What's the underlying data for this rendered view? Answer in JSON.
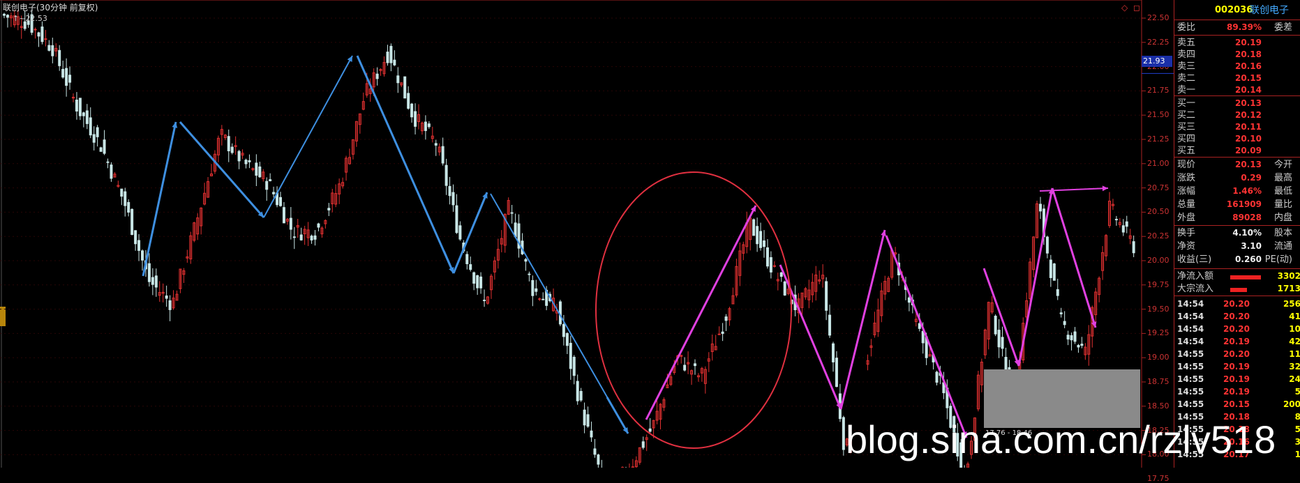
{
  "window": {
    "title": "联创电子(30分钟 前复权)",
    "high_marker": "22.53",
    "corner_icons": "◇ ◻"
  },
  "axis": {
    "min": 17.62,
    "max": 22.62,
    "labels": [
      "22.50",
      "22.25",
      "22.00",
      "21.75",
      "21.50",
      "21.25",
      "21.00",
      "20.75",
      "20.50",
      "20.25",
      "20.00",
      "19.75",
      "19.50",
      "19.25",
      "19.00",
      "18.75",
      "18.50",
      "18.25",
      "18.00",
      "17.75"
    ],
    "current_price_tag": "21.93"
  },
  "colors": {
    "up": "#e03030",
    "down": "#c8e6e6",
    "blue_trend": "#3e8fe0",
    "magenta_trend": "#e040e0",
    "circle": "#e03040",
    "panel_border": "#aa2222"
  },
  "chart_data": {
    "type": "candlestick",
    "title": "联创电子(30分钟 前复权)",
    "ylim": [
      17.62,
      22.62
    ],
    "pivots": [
      22.53,
      22.45,
      22.2,
      21.6,
      21.2,
      20.6,
      19.8,
      19.55,
      20.4,
      21.3,
      21.0,
      20.8,
      20.3,
      20.3,
      20.8,
      21.7,
      22.15,
      21.5,
      21.2,
      20.2,
      19.55,
      20.55,
      19.7,
      19.5,
      18.5,
      17.62,
      17.85,
      18.3,
      19.0,
      18.8,
      19.4,
      20.4,
      19.9,
      19.5,
      19.9,
      18.0,
      19.1,
      20.1,
      19.3,
      18.7,
      17.75,
      19.6,
      18.5,
      20.6,
      19.35,
      19.05,
      20.55,
      20.15
    ]
  },
  "annotations": {
    "blue_lines": "blue trend lines",
    "magenta_lines": "magenta trend lines",
    "circle": "red circle"
  },
  "panel": {
    "code": "002036",
    "name": "联创电子",
    "weibi_label": "委比",
    "weibi_value": "89.39%",
    "weicha_label": "委差",
    "sell": [
      {
        "label": "卖五",
        "price": "20.19"
      },
      {
        "label": "卖四",
        "price": "20.18"
      },
      {
        "label": "卖三",
        "price": "20.16"
      },
      {
        "label": "卖二",
        "price": "20.15"
      },
      {
        "label": "卖一",
        "price": "20.14"
      }
    ],
    "buy": [
      {
        "label": "买一",
        "price": "20.13"
      },
      {
        "label": "买二",
        "price": "20.12"
      },
      {
        "label": "买三",
        "price": "20.11"
      },
      {
        "label": "买四",
        "price": "20.10"
      },
      {
        "label": "买五",
        "price": "20.09"
      }
    ],
    "stats": [
      {
        "label": "现价",
        "value": "20.13",
        "label2": "今开"
      },
      {
        "label": "涨跌",
        "value": "0.29",
        "label2": "最高"
      },
      {
        "label": "涨幅",
        "value": "1.46%",
        "label2": "最低"
      },
      {
        "label": "总量",
        "value": "161909",
        "label2": "量比"
      },
      {
        "label": "外盘",
        "value": "89028",
        "label2": "内盘"
      }
    ],
    "fund": [
      {
        "label": "换手",
        "value": "4.10%",
        "label2": "股本"
      },
      {
        "label": "净资",
        "value": "3.10",
        "label2": "流通"
      },
      {
        "label": "收益(三)",
        "value": "0.260",
        "label2": "PE(动)"
      }
    ],
    "flow": [
      {
        "label": "净流入额",
        "value": "3302",
        "bar": 0.55
      },
      {
        "label": "大宗流入",
        "value": "1713",
        "bar": 0.3
      }
    ],
    "ticks": [
      {
        "time": "14:54",
        "price": "20.20",
        "vol": "256"
      },
      {
        "time": "14:54",
        "price": "20.20",
        "vol": "41"
      },
      {
        "time": "14:54",
        "price": "20.20",
        "vol": "10"
      },
      {
        "time": "14:54",
        "price": "20.19",
        "vol": "42"
      },
      {
        "time": "14:55",
        "price": "20.20",
        "vol": "11"
      },
      {
        "time": "14:55",
        "price": "20.19",
        "vol": "32"
      },
      {
        "time": "14:55",
        "price": "20.19",
        "vol": "24"
      },
      {
        "time": "14:55",
        "price": "20.19",
        "vol": "5"
      },
      {
        "time": "14:55",
        "price": "20.15",
        "vol": "200"
      },
      {
        "time": "14:55",
        "price": "20.18",
        "vol": "8"
      },
      {
        "time": "14:55",
        "price": "20.18",
        "vol": "5"
      },
      {
        "time": "14:55",
        "price": "20.16",
        "vol": "3"
      },
      {
        "time": "14:55",
        "price": "20.17",
        "vol": "1"
      }
    ]
  },
  "popup": {
    "text": "17.76 - 18.46"
  },
  "watermark": "blog.sina.com.cn/rzlv518"
}
